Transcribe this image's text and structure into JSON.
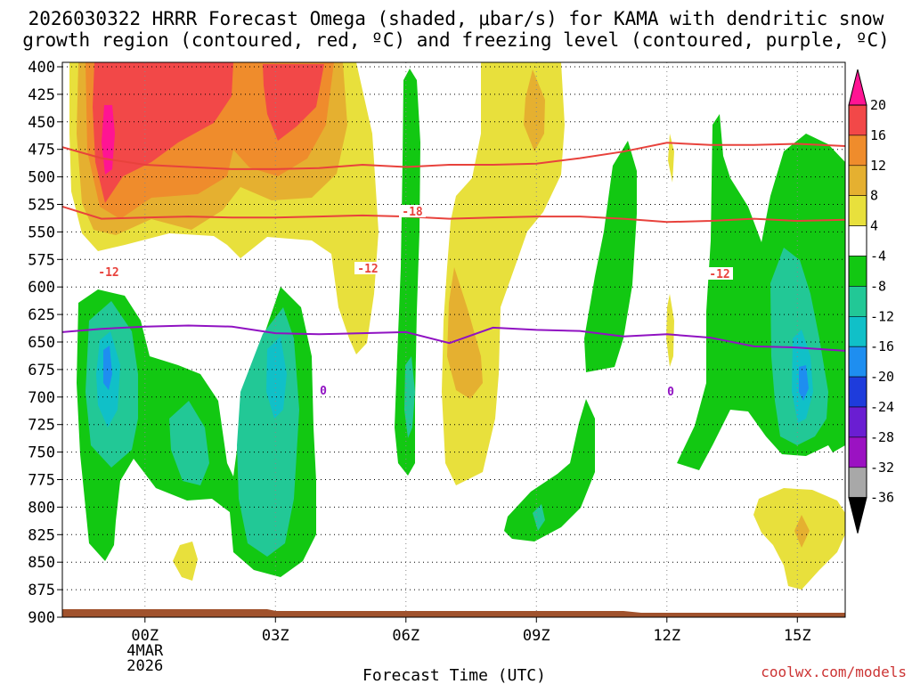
{
  "chart_data": {
    "type": "heatmap",
    "title_line1": "2026030322 HRRR Forecast Omega (shaded, μbar/s) for KAMA with dendritic snow",
    "title_line2": "growth region (contoured, red, ºC) and freezing level (contoured, purple, ºC)",
    "xlabel": "Forecast Time (UTC)",
    "credit": "coolwx.com/models",
    "x_range_hours": [
      -1.9,
      16.1
    ],
    "x_ticks": [
      {
        "hour": 0,
        "label": "00Z",
        "sub1": "4MAR",
        "sub2": "2026"
      },
      {
        "hour": 3,
        "label": "03Z"
      },
      {
        "hour": 6,
        "label": "06Z"
      },
      {
        "hour": 9,
        "label": "09Z"
      },
      {
        "hour": 12,
        "label": "12Z"
      },
      {
        "hour": 15,
        "label": "15Z"
      }
    ],
    "y_levels": [
      "400",
      "425",
      "450",
      "475",
      "500",
      "525",
      "550",
      "575",
      "600",
      "625",
      "650",
      "675",
      "700",
      "725",
      "750",
      "775",
      "800",
      "825",
      "850",
      "875",
      "900"
    ],
    "y_range_hpa": [
      400,
      900
    ],
    "colorbar": {
      "labels": [
        "20",
        "16",
        "12",
        "8",
        "4",
        "-4",
        "-8",
        "-12",
        "-16",
        "-20",
        "-24",
        "-28",
        "-32",
        "-36"
      ],
      "colors": [
        "#e8e8e8",
        "#ff1493",
        "#f24848",
        "#ef8c2c",
        "#e5b030",
        "#e8e03c",
        "#ffffff",
        "#12c812",
        "#22c896",
        "#10c0c8",
        "#1e8ef0",
        "#1e3cdc",
        "#6a1ed2",
        "#9b12c2",
        "#a8a8a8",
        "#000000"
      ]
    },
    "shaded_regions": [
      {
        "name": "omega-pos-4-outer-left",
        "level": 4
      },
      {
        "name": "omega-pos-8-left",
        "level": 8
      },
      {
        "name": "omega-pos-12-left",
        "level": 12
      },
      {
        "name": "omega-pos-16-left",
        "level": 16
      },
      {
        "name": "omega-pos-20-left",
        "level": 20
      },
      {
        "name": "omega-pos-4-center",
        "level": 4
      },
      {
        "name": "omega-pos-8-center",
        "level": 8
      },
      {
        "name": "omega-pos-4-right",
        "level": 4
      },
      {
        "name": "omega-neg-4-left",
        "level": -4
      },
      {
        "name": "omega-neg-8-left",
        "level": -8
      },
      {
        "name": "omega-neg-12-left",
        "level": -12
      },
      {
        "name": "omega-neg-4-right",
        "level": -4
      },
      {
        "name": "omega-neg-8-right",
        "level": -8
      },
      {
        "name": "omega-neg-12-right",
        "level": -12
      }
    ],
    "dgz_top_contour": {
      "label": "-18",
      "points": [
        [
          -1.9,
          473
        ],
        [
          -1,
          483
        ],
        [
          0,
          489
        ],
        [
          1,
          491
        ],
        [
          2,
          493
        ],
        [
          3,
          493
        ],
        [
          4,
          492
        ],
        [
          5,
          489
        ],
        [
          6,
          491
        ],
        [
          7,
          489
        ],
        [
          8,
          489
        ],
        [
          9,
          488
        ],
        [
          10,
          483
        ],
        [
          11,
          477
        ],
        [
          12,
          469
        ],
        [
          13,
          471
        ],
        [
          14,
          471
        ],
        [
          15,
          470
        ],
        [
          16.1,
          472
        ]
      ]
    },
    "dgz_bottom_contour": {
      "label": "-12",
      "points": [
        [
          -1.9,
          527
        ],
        [
          -1,
          538
        ],
        [
          0,
          537
        ],
        [
          1,
          536
        ],
        [
          2,
          537
        ],
        [
          3,
          537
        ],
        [
          4,
          536
        ],
        [
          5,
          535
        ],
        [
          6,
          536
        ],
        [
          7,
          538
        ],
        [
          8,
          537
        ],
        [
          9,
          536
        ],
        [
          10,
          536
        ],
        [
          11,
          538
        ],
        [
          12,
          541
        ],
        [
          13,
          540
        ],
        [
          14,
          538
        ],
        [
          15,
          540
        ],
        [
          16.1,
          539
        ]
      ]
    },
    "freezing_level_contour": {
      "label": "0",
      "points": [
        [
          -1.9,
          641
        ],
        [
          -1,
          638
        ],
        [
          0,
          636
        ],
        [
          1,
          635
        ],
        [
          2,
          636
        ],
        [
          3,
          642
        ],
        [
          4,
          643
        ],
        [
          5,
          642
        ],
        [
          6,
          641
        ],
        [
          7,
          651
        ],
        [
          8,
          637
        ],
        [
          9,
          639
        ],
        [
          10,
          640
        ],
        [
          11,
          645
        ],
        [
          12,
          643
        ],
        [
          13,
          646
        ],
        [
          14,
          654
        ],
        [
          15,
          655
        ],
        [
          16.1,
          658
        ]
      ]
    },
    "terrain_pressure_hpa": 892
  }
}
